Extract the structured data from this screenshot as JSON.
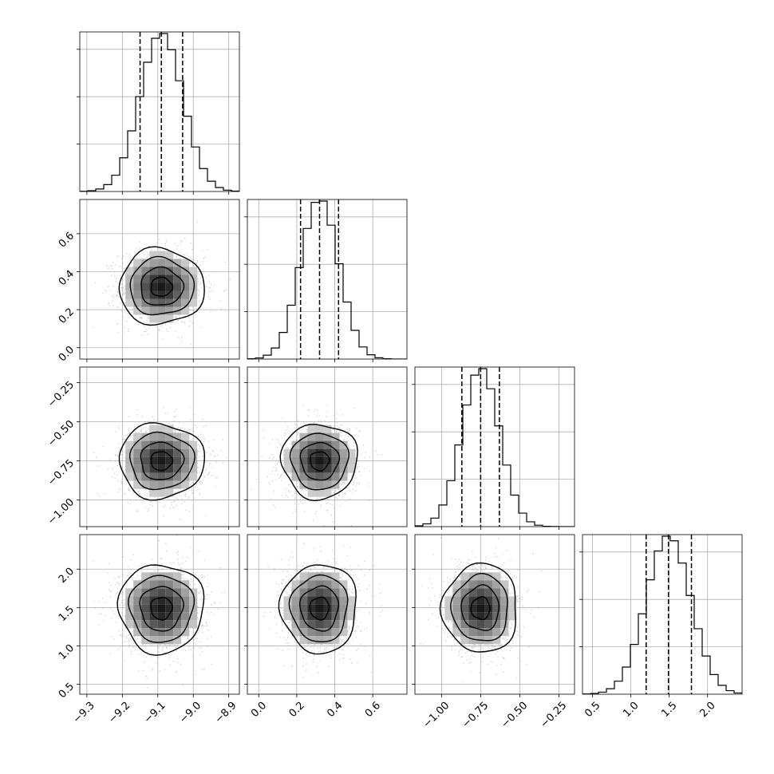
{
  "chart_data": {
    "type": "corner",
    "grid": true,
    "parameters": [
      {
        "range": [
          -9.32,
          -8.87
        ],
        "ticks": [
          -9.3,
          -9.2,
          -9.1,
          -9.0,
          -8.9
        ],
        "tick_labels": [
          "−9.3",
          "−9.2",
          "−9.1",
          "−9.0",
          "−8.9"
        ],
        "median": -9.09,
        "q16": -9.15,
        "q84": -9.03,
        "sigma": 0.06
      },
      {
        "range": [
          -0.06,
          0.78
        ],
        "ticks": [
          0.0,
          0.2,
          0.4,
          0.6
        ],
        "tick_labels": [
          "0.0",
          "0.2",
          "0.4",
          "0.6"
        ],
        "median": 0.32,
        "q16": 0.22,
        "q84": 0.42,
        "sigma": 0.1
      },
      {
        "range": [
          -1.17,
          -0.15
        ],
        "ticks": [
          -1.0,
          -0.75,
          -0.5,
          -0.25
        ],
        "tick_labels": [
          "−1.00",
          "−0.75",
          "−0.50",
          "−0.25"
        ],
        "median": -0.75,
        "q16": -0.87,
        "q84": -0.63,
        "sigma": 0.12
      },
      {
        "range": [
          0.37,
          2.45
        ],
        "ticks": [
          0.5,
          1.0,
          1.5,
          2.0
        ],
        "tick_labels": [
          "0.5",
          "1.0",
          "1.5",
          "2.0"
        ],
        "median": 1.49,
        "q16": 1.2,
        "q84": 1.79,
        "sigma": 0.29
      }
    ],
    "x_axis_labels_shown": [
      "−9.3",
      "−9.2",
      "−9.1",
      "−9.0",
      "−8.9",
      "0.0",
      "0.2",
      "0.4",
      "0.6",
      "−1.00",
      "−0.75",
      "−0.50",
      "−0.25",
      "0.5",
      "1.0",
      "1.5",
      "2.0"
    ],
    "y_axis_labels_shown": [
      "0.0",
      "0.2",
      "0.4",
      "0.6",
      "−1.00",
      "−0.75",
      "−0.50",
      "−0.25",
      "0.5",
      "1.0",
      "1.5",
      "2.0"
    ]
  }
}
